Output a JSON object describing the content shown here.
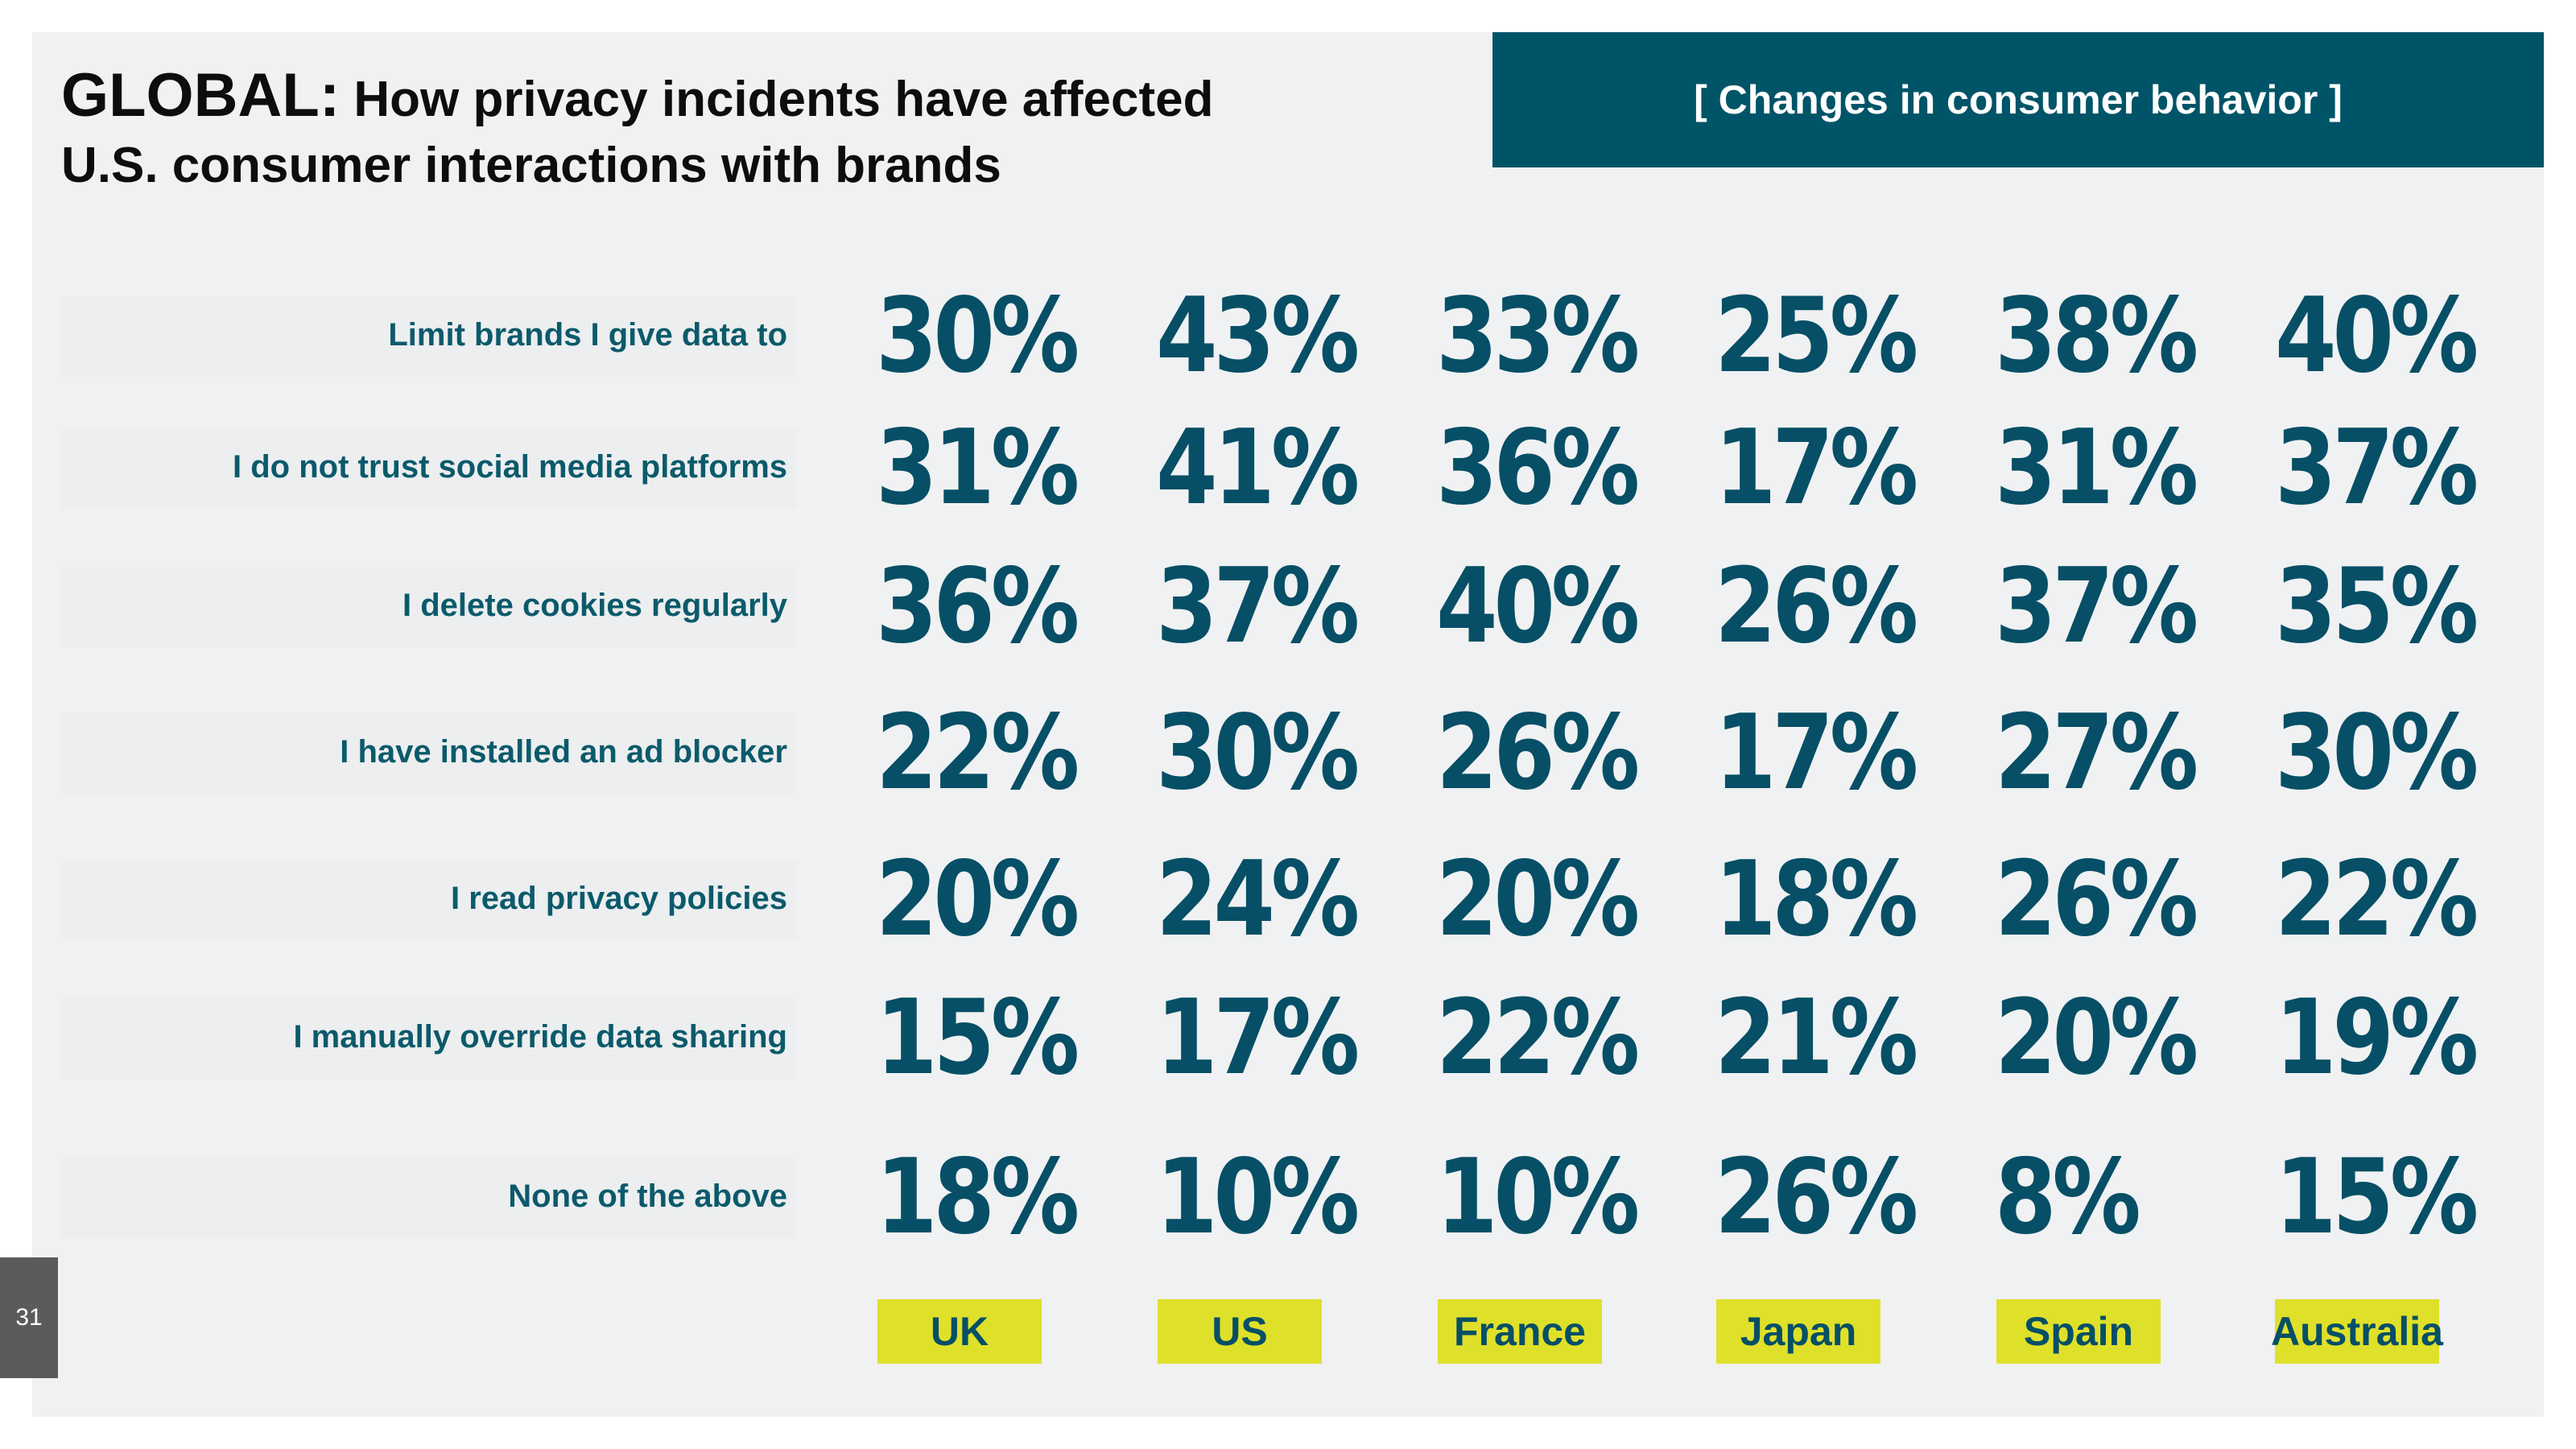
{
  "title": {
    "lead": "GLOBAL:",
    "rest": " How privacy incidents have affected",
    "line2": "U.S. consumer interactions with brands"
  },
  "banner": "[ Changes in consumer behavior ]",
  "page_number": "31",
  "colors": {
    "teal": "#005468",
    "value_text": "#064f66",
    "country_bg": "#dfe02a",
    "panel_bg": "#f0f1f2"
  },
  "countries": [
    "UK",
    "US",
    "France",
    "Japan",
    "Spain",
    "Australia"
  ],
  "rows": [
    {
      "label": "Limit brands I give data to",
      "values": [
        "30%",
        "43%",
        "33%",
        "25%",
        "38%",
        "40%"
      ]
    },
    {
      "label": "I do not trust social media platforms",
      "values": [
        "31%",
        "41%",
        "36%",
        "17%",
        "31%",
        "37%"
      ]
    },
    {
      "label": "I delete cookies regularly",
      "values": [
        "36%",
        "37%",
        "40%",
        "26%",
        "37%",
        "35%"
      ]
    },
    {
      "label": "I have installed an ad blocker",
      "values": [
        "22%",
        "30%",
        "26%",
        "17%",
        "27%",
        "30%"
      ]
    },
    {
      "label": "I read privacy policies",
      "values": [
        "20%",
        "24%",
        "20%",
        "18%",
        "26%",
        "22%"
      ]
    },
    {
      "label": "I manually override data sharing",
      "values": [
        "15%",
        "17%",
        "22%",
        "21%",
        "20%",
        "19%"
      ]
    },
    {
      "label": "None of the above",
      "values": [
        "18%",
        "10%",
        "10%",
        "26%",
        "8%",
        "15%"
      ]
    }
  ]
}
